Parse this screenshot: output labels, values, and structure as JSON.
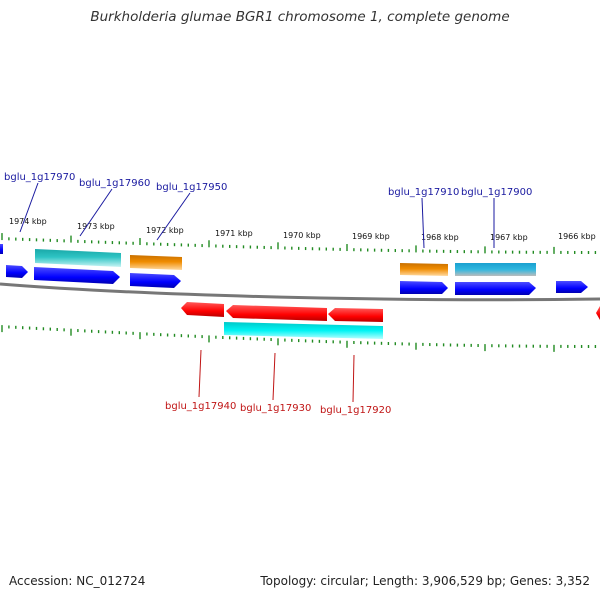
{
  "title": "Burkholderia glumae BGR1 chromosome 1, complete genome",
  "footer": {
    "accession": "Accession: NC_012724",
    "topology": "Topology: circular; Length: 3,906,529 bp; Genes: 3,352"
  },
  "kbp_labels": [
    "1974 kbp",
    "1973 kbp",
    "1972 kbp",
    "1971 kbp",
    "1970 kbp",
    "1969 kbp",
    "1968 kbp",
    "1967 kbp",
    "1966 kbp"
  ],
  "gene_labels_top": [
    "bglu_1g17970",
    "bglu_1g17960",
    "bglu_1g17950",
    "bglu_1g17910",
    "bglu_1g17900"
  ],
  "gene_labels_bottom": [
    "bglu_1g17940",
    "bglu_1g17930",
    "bglu_1g17920"
  ],
  "colors": {
    "forward_gene": "#0000ff",
    "reverse_gene": "#ff0000",
    "cds_cyan": "#35c8c8",
    "cds_orange": "#f08c00",
    "cds_light_cyan": "#00f0f0",
    "backbone": "#777777",
    "tick": "#228b22"
  }
}
